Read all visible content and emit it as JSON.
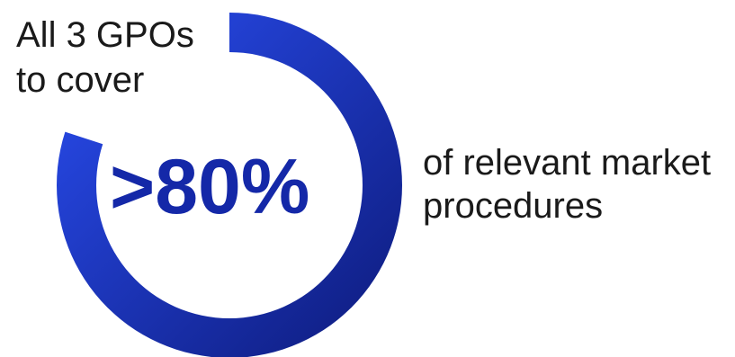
{
  "chart_data": {
    "type": "pie",
    "variant": "donut",
    "value": 80,
    "max": 100,
    "center_label": ">80%",
    "annotation_lines": [
      "All 3 GPOs",
      "to cover"
    ],
    "side_label_lines": [
      "of relevant market",
      "procedures"
    ],
    "colors": {
      "ring_start": "#2a4ef2",
      "ring_end": "#0d1a7a",
      "center_text": "#1428a8",
      "label_text": "#1a1a1a"
    }
  }
}
